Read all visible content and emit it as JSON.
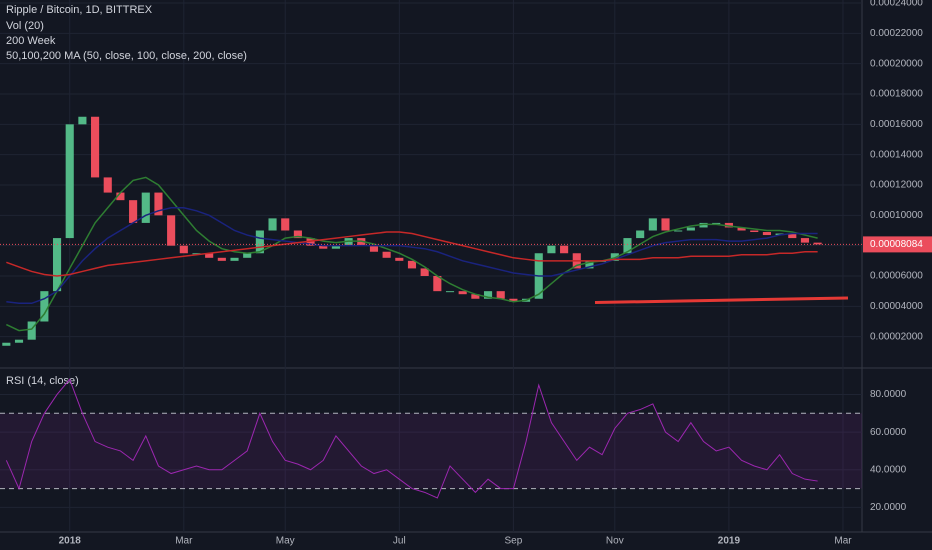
{
  "chart_data": [
    {
      "type": "candlestick",
      "title": "Ripple / Bitcoin, 1D, BITTREX",
      "subtitles": [
        "Vol (20)",
        "200 Week",
        "50,100,200 MA (50, close, 100, close, 200, close)"
      ],
      "categories": [
        null,
        null,
        null,
        null,
        null,
        "2018",
        null,
        null,
        null,
        null,
        null,
        null,
        null,
        null,
        "Mar",
        null,
        null,
        null,
        null,
        null,
        null,
        null,
        "May",
        null,
        null,
        null,
        null,
        null,
        null,
        null,
        null,
        "Jul",
        null,
        null,
        null,
        null,
        null,
        null,
        null,
        null,
        "Sep",
        null,
        null,
        null,
        null,
        null,
        null,
        null,
        "Nov",
        null,
        null,
        null,
        null,
        null,
        null,
        null,
        null,
        "2019",
        null,
        null,
        null,
        null,
        null,
        null,
        null,
        null,
        "Mar",
        null
      ],
      "open": [
        1.4e-05,
        1.6e-05,
        1.8e-05,
        3e-05,
        5e-05,
        8.5e-05,
        0.00016,
        0.000165,
        0.000125,
        0.000115,
        0.00011,
        9.5e-05,
        0.000115,
        0.0001,
        8e-05,
        7.5e-05,
        7.5e-05,
        7.2e-05,
        7e-05,
        7.2e-05,
        7.5e-05,
        9e-05,
        9.8e-05,
        9e-05,
        8.5e-05,
        8e-05,
        7.8e-05,
        8e-05,
        8.5e-05,
        8e-05,
        7.6e-05,
        7.2e-05,
        7e-05,
        6.5e-05,
        6e-05,
        5e-05,
        5e-05,
        4.8e-05,
        4.5e-05,
        5e-05,
        4.5e-05,
        4.3e-05,
        4.5e-05,
        7.5e-05,
        8e-05,
        7.5e-05,
        6.5e-05,
        7e-05,
        7e-05,
        7.5e-05,
        8.5e-05,
        9e-05,
        9.8e-05,
        9e-05,
        9e-05,
        9.2e-05,
        9.5e-05,
        9.5e-05,
        9.2e-05,
        9e-05,
        8.9e-05,
        8.7e-05,
        8.8e-05,
        8.5e-05,
        8.2e-05,
        null,
        null,
        null
      ],
      "close": [
        1.6e-05,
        1.8e-05,
        3e-05,
        5e-05,
        8.5e-05,
        0.00016,
        0.000165,
        0.000125,
        0.000115,
        0.00011,
        9.5e-05,
        0.000115,
        0.0001,
        8e-05,
        7.5e-05,
        7.5e-05,
        7.2e-05,
        7e-05,
        7.2e-05,
        7.5e-05,
        9e-05,
        9.8e-05,
        9e-05,
        8.5e-05,
        8e-05,
        7.8e-05,
        8e-05,
        8.5e-05,
        8e-05,
        7.6e-05,
        7.2e-05,
        7e-05,
        6.5e-05,
        6e-05,
        5e-05,
        5e-05,
        4.8e-05,
        4.5e-05,
        5e-05,
        4.5e-05,
        4.3e-05,
        4.5e-05,
        7.5e-05,
        8e-05,
        7.5e-05,
        6.5e-05,
        7e-05,
        7e-05,
        7.5e-05,
        8.5e-05,
        9e-05,
        9.8e-05,
        9e-05,
        9e-05,
        9.2e-05,
        9.5e-05,
        9.5e-05,
        9.2e-05,
        9e-05,
        8.9e-05,
        8.7e-05,
        8.8e-05,
        8.5e-05,
        8.2e-05,
        8.084e-05,
        null,
        null,
        null
      ],
      "up_color": "#53b987",
      "down_color": "#eb4d5c",
      "overlays": [
        {
          "color": "#2e7d32",
          "values": [
            2.8e-05,
            2.4e-05,
            2.5e-05,
            3.5e-05,
            5e-05,
            6.5e-05,
            8e-05,
            9.5e-05,
            0.000105,
            0.000115,
            0.000123,
            0.000125,
            0.00012,
            0.00011,
            0.0001,
            9e-05,
            8.3e-05,
            7.8e-05,
            7.6e-05,
            7.5e-05,
            7.6e-05,
            8e-05,
            8.5e-05,
            8.6e-05,
            8.5e-05,
            8.3e-05,
            8.2e-05,
            8.3e-05,
            8.3e-05,
            8.1e-05,
            7.8e-05,
            7.5e-05,
            7.1e-05,
            6.6e-05,
            6e-05,
            5.5e-05,
            5.1e-05,
            4.8e-05,
            4.6e-05,
            4.5e-05,
            4.3e-05,
            4.4e-05,
            4.8e-05,
            5.5e-05,
            6.2e-05,
            6.7e-05,
            6.9e-05,
            7e-05,
            7.2e-05,
            7.6e-05,
            8.1e-05,
            8.6e-05,
            8.9e-05,
            9.1e-05,
            9.3e-05,
            9.4e-05,
            9.4e-05,
            9.3e-05,
            9.2e-05,
            9.1e-05,
            9e-05,
            9e-05,
            8.9e-05,
            8.7e-05,
            8.5e-05,
            null,
            null,
            null
          ]
        },
        {
          "color": "#1a237e",
          "values": [
            4.3e-05,
            4.2e-05,
            4.2e-05,
            4.5e-05,
            5e-05,
            6e-05,
            7e-05,
            7.8e-05,
            8.5e-05,
            9e-05,
            9.5e-05,
            0.0001,
            0.000103,
            0.000105,
            0.000105,
            0.000103,
            0.0001,
            9.5e-05,
            9e-05,
            8.7e-05,
            8.5e-05,
            8.4e-05,
            8.3e-05,
            8.2e-05,
            8.1e-05,
            8e-05,
            8e-05,
            8e-05,
            8e-05,
            8e-05,
            8e-05,
            8e-05,
            7.9e-05,
            7.8e-05,
            7.6e-05,
            7.3e-05,
            7e-05,
            6.8e-05,
            6.6e-05,
            6.4e-05,
            6.2e-05,
            6.1e-05,
            6e-05,
            6e-05,
            6.2e-05,
            6.4e-05,
            6.6e-05,
            6.8e-05,
            7.1e-05,
            7.4e-05,
            7.7e-05,
            8e-05,
            8.2e-05,
            8.3e-05,
            8.4e-05,
            8.4e-05,
            8.4e-05,
            8.3e-05,
            8.3e-05,
            8.4e-05,
            8.5e-05,
            8.7e-05,
            8.8e-05,
            8.8e-05,
            8.8e-05,
            null,
            null,
            null
          ]
        },
        {
          "color": "#c62828",
          "values": [
            6.9e-05,
            6.6e-05,
            6.3e-05,
            6.1e-05,
            6e-05,
            6.1e-05,
            6.3e-05,
            6.5e-05,
            6.7e-05,
            6.8e-05,
            6.9e-05,
            7e-05,
            7.1e-05,
            7.2e-05,
            7.3e-05,
            7.4e-05,
            7.5e-05,
            7.6e-05,
            7.7e-05,
            7.8e-05,
            7.9e-05,
            8e-05,
            8.1e-05,
            8.2e-05,
            8.3e-05,
            8.4e-05,
            8.5e-05,
            8.6e-05,
            8.7e-05,
            8.8e-05,
            8.9e-05,
            8.9e-05,
            8.8e-05,
            8.6e-05,
            8.4e-05,
            8.2e-05,
            8e-05,
            7.8e-05,
            7.6e-05,
            7.4e-05,
            7.2e-05,
            7.1e-05,
            7e-05,
            7e-05,
            7e-05,
            7e-05,
            7e-05,
            7e-05,
            7.1e-05,
            7.1e-05,
            7.1e-05,
            7.2e-05,
            7.2e-05,
            7.2e-05,
            7.3e-05,
            7.3e-05,
            7.3e-05,
            7.3e-05,
            7.4e-05,
            7.4e-05,
            7.4e-05,
            7.5e-05,
            7.5e-05,
            7.6e-05,
            7.6e-05,
            null,
            null,
            null
          ]
        }
      ],
      "trend_line": {
        "color": "#e53935",
        "values": [
          4.25e-05,
          4.55e-05
        ]
      },
      "last_price": 8.084e-05,
      "ylim": [
        0,
        0.00024
      ],
      "yticks": [
        {
          "value": 2e-05,
          "label": "0.00002000"
        },
        {
          "value": 4e-05,
          "label": "0.00004000"
        },
        {
          "value": 6e-05,
          "label": "0.00006000"
        },
        {
          "value": 8e-05,
          "label": "0.00008000"
        },
        {
          "value": 0.0001,
          "label": "0.00010000"
        },
        {
          "value": 0.00012,
          "label": "0.00012000"
        },
        {
          "value": 0.00014,
          "label": "0.00014000"
        },
        {
          "value": 0.00016,
          "label": "0.00016000"
        },
        {
          "value": 0.00018,
          "label": "0.00018000"
        },
        {
          "value": 0.0002,
          "label": "0.00020000"
        },
        {
          "value": 0.00022,
          "label": "0.00022000"
        },
        {
          "value": 0.00024,
          "label": "0.00024000"
        }
      ],
      "grid": true
    },
    {
      "type": "line",
      "title": "RSI (14, close)",
      "color": "#9c27b0",
      "values": [
        45,
        30,
        55,
        70,
        80,
        88,
        70,
        55,
        52,
        50,
        45,
        58,
        42,
        38,
        40,
        42,
        40,
        40,
        45,
        50,
        70,
        55,
        45,
        43,
        40,
        45,
        58,
        50,
        42,
        38,
        40,
        35,
        30,
        28,
        25,
        42,
        35,
        28,
        35,
        30,
        30,
        55,
        85,
        65,
        55,
        45,
        52,
        48,
        62,
        70,
        72,
        75,
        60,
        55,
        65,
        55,
        50,
        52,
        45,
        42,
        40,
        48,
        38,
        35,
        34,
        null,
        null,
        null
      ],
      "bands": [
        30,
        70
      ],
      "ylim": [
        8,
        93
      ],
      "yticks": [
        {
          "value": 20,
          "label": "20.0000"
        },
        {
          "value": 40,
          "label": "40.0000"
        },
        {
          "value": 60,
          "label": "60.0000"
        },
        {
          "value": 80,
          "label": "80.0000"
        }
      ],
      "grid": true
    }
  ]
}
